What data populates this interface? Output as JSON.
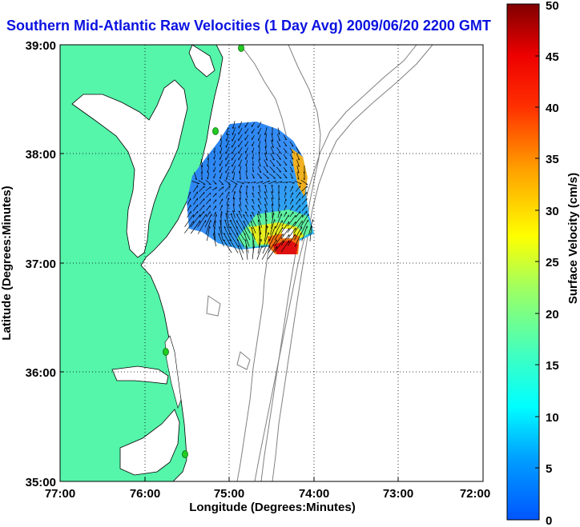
{
  "title": "Southern Mid-Atlantic Raw Velocities (1 Day Avg) 2009/06/20 2200 GMT",
  "x_axis": {
    "label": "Longitude (Degrees:Minutes)",
    "ticks": [
      "77:00",
      "76:00",
      "75:00",
      "74:00",
      "73:00",
      "72:00"
    ]
  },
  "y_axis": {
    "label": "Latitude (Degrees:Minutes)",
    "ticks": [
      "39:00",
      "38:00",
      "37:00",
      "36:00",
      "35:00"
    ]
  },
  "colorbar": {
    "label": "Surface Velocity (cm/s)",
    "ticks": [
      "0",
      "5",
      "10",
      "15",
      "20",
      "25",
      "30",
      "35",
      "40",
      "45",
      "50"
    ],
    "min": 0,
    "max": 50,
    "colormap": "jet"
  },
  "colors": {
    "title": "#0b12e0",
    "land": "#55f5aa",
    "land_edge": "#000000",
    "bathymetry": "#808080",
    "station": "#22cc22",
    "grid": "#000000"
  }
}
